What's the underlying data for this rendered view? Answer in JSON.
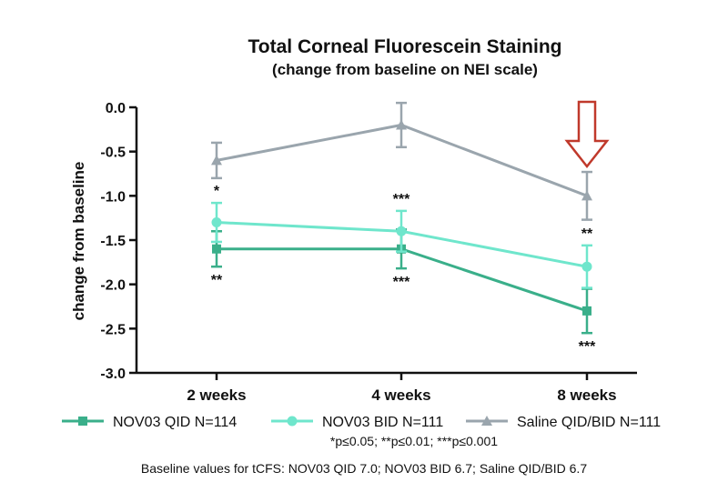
{
  "chart_data": {
    "type": "line",
    "title": "Total Corneal Fluorescein Staining",
    "subtitle": "(change from baseline on NEI scale)",
    "xlabel": "",
    "ylabel": "change from baseline",
    "categories": [
      "2 weeks",
      "4 weeks",
      "8 weeks"
    ],
    "ylim": [
      -3.0,
      0.0
    ],
    "yticks": [
      "0.0",
      "-0.5",
      "-1.0",
      "-1.5",
      "-2.0",
      "-2.5",
      "-3.0"
    ],
    "ytick_values": [
      0.0,
      -0.5,
      -1.0,
      -1.5,
      -2.0,
      -2.5,
      -3.0
    ],
    "grid": false,
    "legend_position": "bottom",
    "series": [
      {
        "name": "NOV03 QID N=114",
        "color": "#3aaf8a",
        "marker": "square",
        "values": [
          -1.6,
          -1.6,
          -2.3
        ],
        "error": [
          0.2,
          0.22,
          0.25
        ],
        "significance": [
          "**",
          "***",
          "***"
        ],
        "sig_position": [
          "below",
          "below",
          "below"
        ]
      },
      {
        "name": "NOV03 BID N=111",
        "color": "#6fe6cc",
        "marker": "circle",
        "values": [
          -1.3,
          -1.4,
          -1.8
        ],
        "error": [
          0.22,
          0.23,
          0.24
        ],
        "significance": [
          "*",
          "***",
          "**"
        ],
        "sig_position": [
          "above",
          "above",
          "above"
        ]
      },
      {
        "name": "Saline QID/BID N=111",
        "color": "#9aa5ad",
        "marker": "triangle",
        "values": [
          -0.6,
          -0.2,
          -1.0
        ],
        "error": [
          0.2,
          0.25,
          0.27
        ],
        "significance": [
          "",
          "",
          ""
        ],
        "sig_position": [
          "",
          "",
          ""
        ]
      }
    ],
    "highlight_arrow": {
      "category": "8 weeks",
      "color": "#c0392b"
    }
  },
  "footnote_significance": "*p≤0.05; **p≤0.01; ***p≤0.001",
  "baseline_note": "Baseline values for tCFS: NOV03 QID 7.0; NOV03 BID 6.7; Saline QID/BID 6.7"
}
